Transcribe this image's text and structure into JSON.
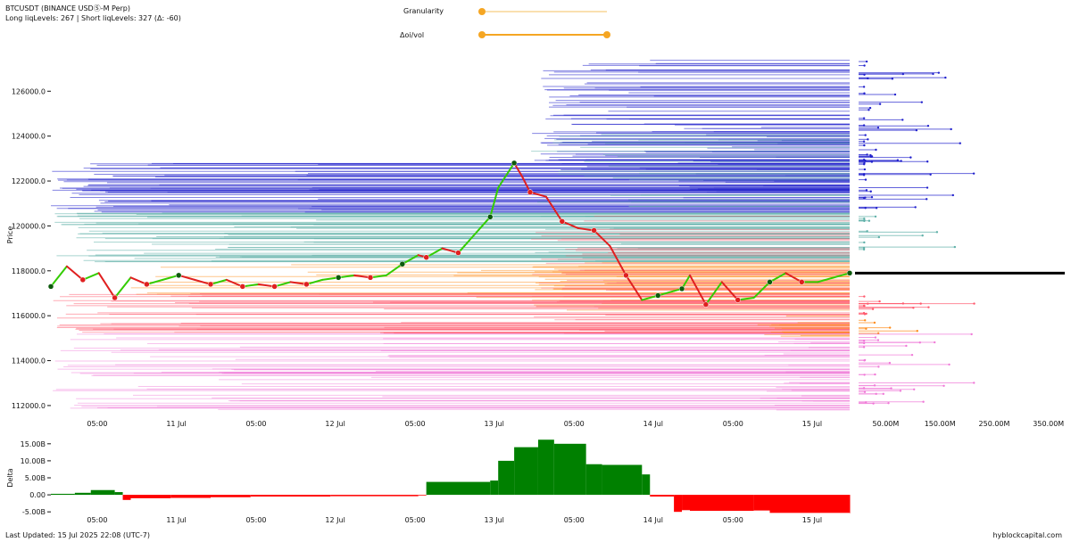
{
  "header": {
    "title": "BTCUSDT (BINANCE USDⓈ-M Perp)",
    "subtitle": "Long liqLevels: 267 | Short liqLevels: 327 (Δ: -60)"
  },
  "sliders": [
    {
      "label": "Granularity",
      "value": 0.0
    },
    {
      "label": "Δoi/vol",
      "range": [
        0.0,
        1.0
      ]
    }
  ],
  "footer": {
    "updated": "Last Updated: 15 Jul 2025 22:08 (UTC-7)",
    "brand": "hyblockcapital.com"
  },
  "colors": {
    "price_up": "#33cc00",
    "price_down": "#e02020",
    "short_far": "#2020cc",
    "short_mid": "#5fb0a8",
    "long_near": "#ff8c1a",
    "long_mid": "#ff5a6e",
    "long_far": "#f07ad8",
    "delta_pos": "#008000",
    "delta_neg": "#ff0000",
    "slider": "#f5a623",
    "current_price": "#000000"
  },
  "chart_data": [
    {
      "type": "line",
      "ylabel": "Price",
      "ylim": [
        111600,
        127600
      ],
      "yticks": [
        "112000.0",
        "114000.0",
        "116000.0",
        "118000.0",
        "120000.0",
        "122000.0",
        "124000.0",
        "126000.0"
      ],
      "xticks": [
        "05:00",
        "11 Jul",
        "05:00",
        "12 Jul",
        "05:00",
        "13 Jul",
        "05:00",
        "14 Jul",
        "05:00",
        "15 Jul"
      ],
      "current_price": 117900,
      "series": [
        {
          "x": [
            0,
            0.02,
            0.04,
            0.06,
            0.08,
            0.1,
            0.12,
            0.14,
            0.16,
            0.18,
            0.2,
            0.22,
            0.24,
            0.26,
            0.28,
            0.3,
            0.32,
            0.34,
            0.36,
            0.38,
            0.4,
            0.42,
            0.44,
            0.46,
            0.47,
            0.49,
            0.51,
            0.53,
            0.55,
            0.56,
            0.58,
            0.59,
            0.6,
            0.62,
            0.64,
            0.66,
            0.68,
            0.7,
            0.72,
            0.74,
            0.76,
            0.78,
            0.79,
            0.8,
            0.82,
            0.84,
            0.86,
            0.88,
            0.9,
            0.92,
            0.94,
            0.96,
            1.0
          ],
          "y": [
            117300,
            118200,
            117600,
            117900,
            116800,
            117700,
            117400,
            117600,
            117800,
            117600,
            117400,
            117600,
            117300,
            117400,
            117300,
            117500,
            117400,
            117600,
            117700,
            117800,
            117700,
            117800,
            118300,
            118700,
            118600,
            119000,
            118800,
            119600,
            120400,
            121700,
            122800,
            122200,
            121500,
            121300,
            120200,
            119900,
            119800,
            119100,
            117800,
            116700,
            116900,
            117100,
            117200,
            117800,
            116500,
            117500,
            116700,
            116800,
            117500,
            117900,
            117500,
            117500,
            117900
          ]
        }
      ]
    },
    {
      "type": "area",
      "ylabel": "Delta",
      "ylim": [
        -6,
        16
      ],
      "yticks": [
        "-5.00B",
        "0.00",
        "5.00B",
        "10.00B",
        "15.00B"
      ],
      "xticks": [
        "05:00",
        "11 Jul",
        "05:00",
        "12 Jul",
        "05:00",
        "13 Jul",
        "05:00",
        "14 Jul",
        "05:00",
        "15 Jul"
      ],
      "series": [
        {
          "x": [
            0,
            0.03,
            0.05,
            0.08,
            0.09,
            0.1,
            0.15,
            0.2,
            0.25,
            0.3,
            0.35,
            0.4,
            0.46,
            0.47,
            0.55,
            0.56,
            0.58,
            0.61,
            0.63,
            0.67,
            0.69,
            0.74,
            0.75,
            0.78,
            0.79,
            0.8,
            0.88,
            0.9,
            1.0
          ],
          "y": [
            0.3,
            0.6,
            1.4,
            0.8,
            -1.5,
            -1.0,
            -0.9,
            -0.7,
            -0.5,
            -0.5,
            -0.4,
            -0.4,
            -0.2,
            3.8,
            4.2,
            10.0,
            14.0,
            16.2,
            15.0,
            9.0,
            8.8,
            6.0,
            -0.5,
            -5.0,
            -4.5,
            -4.7,
            -4.6,
            -5.3,
            -5.4
          ]
        }
      ]
    },
    {
      "type": "bar",
      "xlabel": "",
      "xticks": [
        "50.00M",
        "150.00M",
        "250.00M",
        "350.00M"
      ],
      "note": "liquidation level volume profile"
    }
  ]
}
